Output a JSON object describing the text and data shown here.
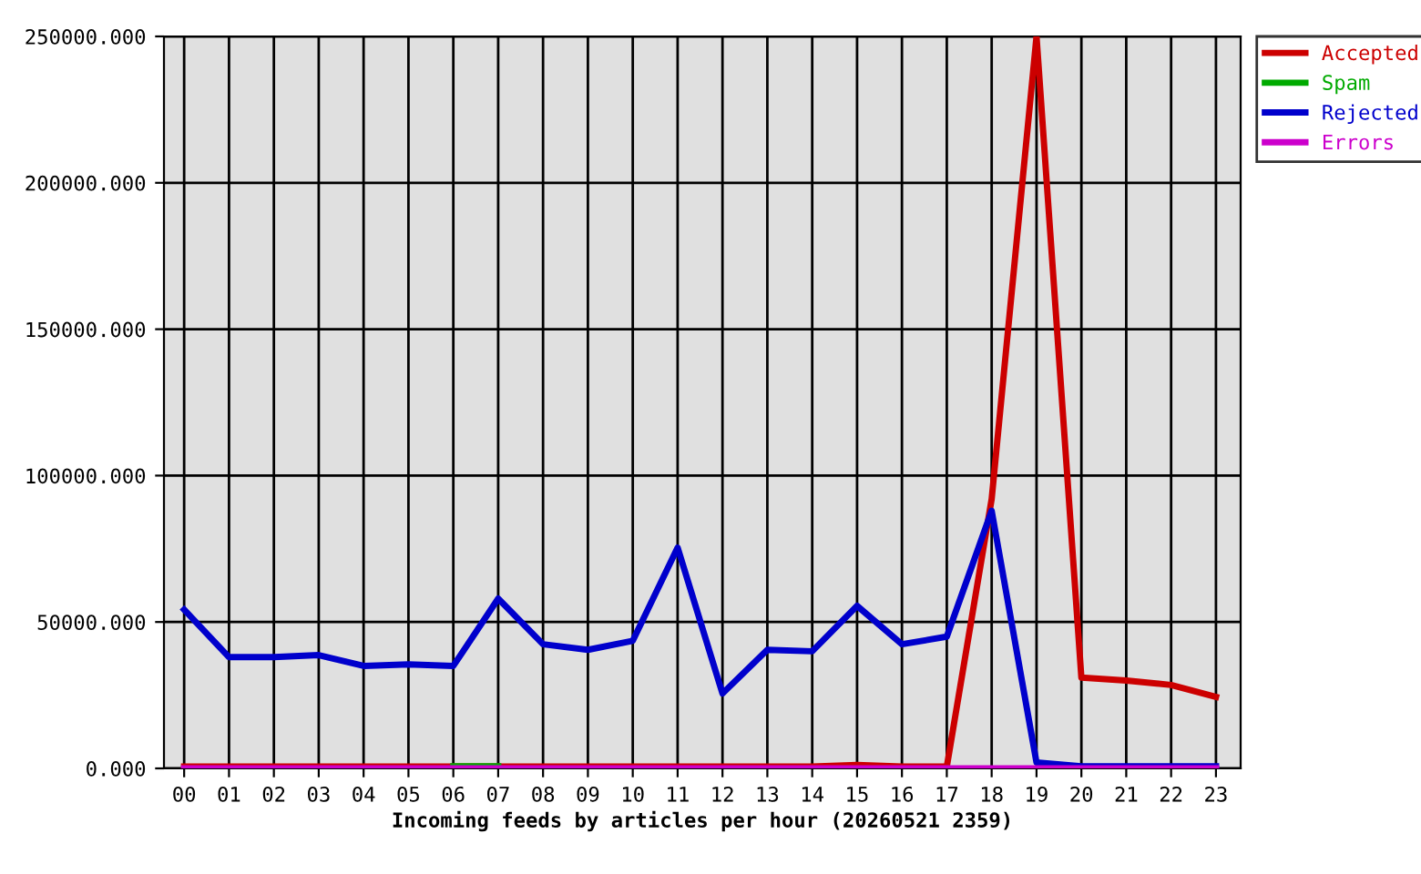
{
  "chart_data": {
    "type": "line",
    "xlabel": "Incoming feeds by articles per hour (20260521 2359)",
    "categories": [
      "00",
      "01",
      "02",
      "03",
      "04",
      "05",
      "06",
      "07",
      "08",
      "09",
      "10",
      "11",
      "12",
      "13",
      "14",
      "15",
      "16",
      "17",
      "18",
      "19",
      "20",
      "21",
      "22",
      "23"
    ],
    "series": [
      {
        "name": "Accepted",
        "color": "#cc0000",
        "values": [
          600,
          600,
          600,
          600,
          600,
          600,
          600,
          600,
          600,
          600,
          600,
          600,
          600,
          600,
          600,
          1200,
          600,
          600,
          92000,
          250000,
          31000,
          30000,
          28500,
          24400
        ]
      },
      {
        "name": "Spam",
        "color": "#00aa00",
        "values": [
          null,
          null,
          null,
          null,
          null,
          null,
          700,
          700,
          null,
          null,
          null,
          null,
          null,
          null,
          null,
          null,
          null,
          null,
          null,
          null,
          null,
          null,
          null,
          null
        ]
      },
      {
        "name": "Rejected",
        "color": "#0000cc",
        "values": [
          54200,
          38000,
          38000,
          38700,
          35000,
          35500,
          35000,
          58000,
          42400,
          40500,
          43600,
          75400,
          25600,
          40500,
          40000,
          55500,
          42400,
          45000,
          88000,
          2000,
          700,
          700,
          700,
          700
        ]
      },
      {
        "name": "Errors",
        "color": "#cc00cc",
        "values": [
          0,
          0,
          0,
          0,
          0,
          0,
          0,
          0,
          0,
          0,
          0,
          0,
          0,
          0,
          0,
          0,
          0,
          0,
          0,
          0,
          0,
          0,
          0,
          0
        ]
      }
    ],
    "ylim": [
      0,
      250000
    ],
    "yticks": [
      {
        "value": 0,
        "label": "0.000"
      },
      {
        "value": 50000,
        "label": "50000.000"
      },
      {
        "value": 100000,
        "label": "100000.000"
      },
      {
        "value": 150000,
        "label": "150000.000"
      },
      {
        "value": 200000,
        "label": "200000.000"
      },
      {
        "value": 250000,
        "label": "250000.000"
      }
    ],
    "grid": true,
    "legend": "top right"
  }
}
